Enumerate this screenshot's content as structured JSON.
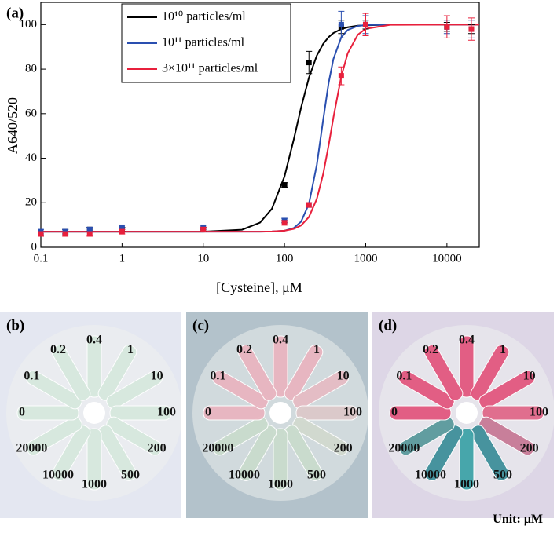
{
  "chart_data": {
    "type": "line",
    "panel_label": "(a)",
    "x_label": "[Cysteine], μM",
    "y_label": "A640/520",
    "log_x": true,
    "xlim": [
      0.1,
      25000
    ],
    "ylim": [
      0,
      110
    ],
    "xticks": [
      0.1,
      1,
      10,
      100,
      1000,
      10000
    ],
    "yticks": [
      0,
      20,
      40,
      60,
      80,
      100
    ],
    "x": [
      0.1,
      0.2,
      0.4,
      1,
      10,
      100,
      200,
      500,
      1000,
      10000,
      20000
    ],
    "curve_x": [
      0.1,
      1,
      10,
      30,
      50,
      70,
      100,
      130,
      160,
      200,
      250,
      300,
      350,
      400,
      500,
      600,
      800,
      1000,
      2000,
      10000,
      25000
    ],
    "series": [
      {
        "name": "10¹⁰ particles/ml",
        "color": "#000000",
        "values": [
          6,
          7,
          8,
          8,
          8,
          28,
          83,
          99,
          100,
          99,
          98
        ],
        "errors": [
          1,
          1,
          1,
          1,
          1,
          1,
          5,
          3,
          2,
          2,
          2
        ],
        "curve": [
          7,
          7,
          7,
          7.9,
          11.1,
          17.3,
          31.8,
          48.4,
          62.7,
          76.2,
          86.1,
          91.4,
          94.4,
          96.2,
          98,
          98.8,
          99.5,
          99.7,
          100,
          100,
          100
        ]
      },
      {
        "name": "10¹¹ particles/ml",
        "color": "#2a4fb0",
        "values": [
          7,
          7,
          8,
          9,
          9,
          12,
          19,
          100,
          100,
          99,
          98
        ],
        "errors": [
          1,
          1,
          1,
          1,
          1,
          1,
          1,
          6,
          4,
          3,
          4
        ],
        "curve": [
          7,
          7,
          7,
          7,
          7,
          7.1,
          7.45,
          8.65,
          11.5,
          19.5,
          37,
          57.4,
          73.9,
          84.5,
          94.3,
          97.6,
          99.4,
          99.8,
          100,
          100,
          100
        ]
      },
      {
        "name": "3×10¹¹ particles/ml",
        "color": "#e8203c",
        "values": [
          6,
          6,
          6,
          7,
          8,
          11,
          19,
          77,
          100,
          99,
          98
        ],
        "errors": [
          1,
          1,
          1,
          1,
          1,
          1,
          1,
          4,
          5,
          5,
          5
        ],
        "curve": [
          7,
          7,
          7,
          7,
          7,
          7.1,
          7.45,
          8.26,
          9.8,
          13.6,
          21.7,
          33,
          45.9,
          58.2,
          76.7,
          87.1,
          95.5,
          98.1,
          99.9,
          100,
          100
        ]
      }
    ]
  },
  "photos": [
    {
      "label": "(b)",
      "background": "#e4e7f1",
      "tube_labels": [
        "0.4",
        "1",
        "10",
        "100",
        "200",
        "500",
        "1000",
        "10000",
        "20000",
        "0",
        "0.1",
        "0.2"
      ],
      "tube_colors": [
        "#d6e8de",
        "#d6e8de",
        "#d6e8de",
        "#d6e8de",
        "#d6e8de",
        "#d6e8de",
        "#d6e8de",
        "#d6e8de",
        "#d6e8de",
        "#d6e8de",
        "#d6e8de",
        "#d6e8de"
      ]
    },
    {
      "label": "(c)",
      "background": "#b3c2cb",
      "tube_labels": [
        "0.4",
        "1",
        "10",
        "100",
        "200",
        "500",
        "1000",
        "10000",
        "20000",
        "0",
        "0.1",
        "0.2"
      ],
      "tube_colors": [
        "#e9b5c0",
        "#e9b5c0",
        "#e6bcc4",
        "#dcc9ca",
        "#d2d9cf",
        "#c9dccd",
        "#c9dccd",
        "#c9dccd",
        "#c9dccd",
        "#e9b5c0",
        "#e9b5c0",
        "#e9b5c0"
      ]
    },
    {
      "label": "(d)",
      "background": "#ddd6e6",
      "tube_labels": [
        "0.4",
        "1",
        "10",
        "100",
        "200",
        "500",
        "1000",
        "10000",
        "20000",
        "0",
        "0.1",
        "0.2"
      ],
      "tube_colors": [
        "#e2577f",
        "#e2577f",
        "#e2577f",
        "#e0688a",
        "#c77a96",
        "#3f8f9a",
        "#3fa3a8",
        "#3f8f9a",
        "#5a9a9c",
        "#e2577f",
        "#e2577f",
        "#e2577f"
      ]
    }
  ],
  "unit": "Unit: μM"
}
